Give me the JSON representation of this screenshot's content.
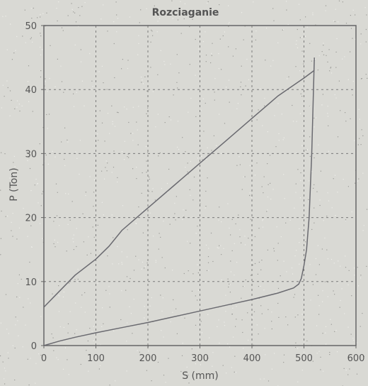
{
  "chart_data": {
    "type": "line",
    "title": "Rozciaganie",
    "xlabel": "S (mm)",
    "ylabel": "P (Ton)",
    "xlim": [
      0,
      600
    ],
    "ylim": [
      0,
      50
    ],
    "xticks": [
      0,
      100,
      200,
      300,
      400,
      500,
      600
    ],
    "yticks": [
      0,
      10,
      20,
      30,
      40,
      50
    ],
    "grid": true,
    "series": [
      {
        "x": [
          0,
          30,
          60,
          100,
          150,
          200,
          250,
          300,
          350,
          400,
          450,
          480,
          490,
          495,
          500,
          505,
          510,
          515,
          520
        ],
        "y": [
          0,
          0.7,
          1.3,
          2.0,
          2.8,
          3.6,
          4.5,
          5.4,
          6.3,
          7.2,
          8.2,
          9.0,
          9.6,
          10.5,
          12.5,
          15.0,
          20.0,
          30.0,
          45.0
        ]
      },
      {
        "x": [
          0,
          30,
          60,
          100,
          125,
          150,
          200,
          250,
          300,
          350,
          400,
          450,
          500,
          520
        ],
        "y": [
          6.0,
          8.5,
          11.0,
          13.5,
          15.5,
          18.0,
          21.5,
          25.0,
          28.5,
          32.0,
          35.5,
          39.0,
          41.8,
          43.0
        ]
      }
    ]
  }
}
